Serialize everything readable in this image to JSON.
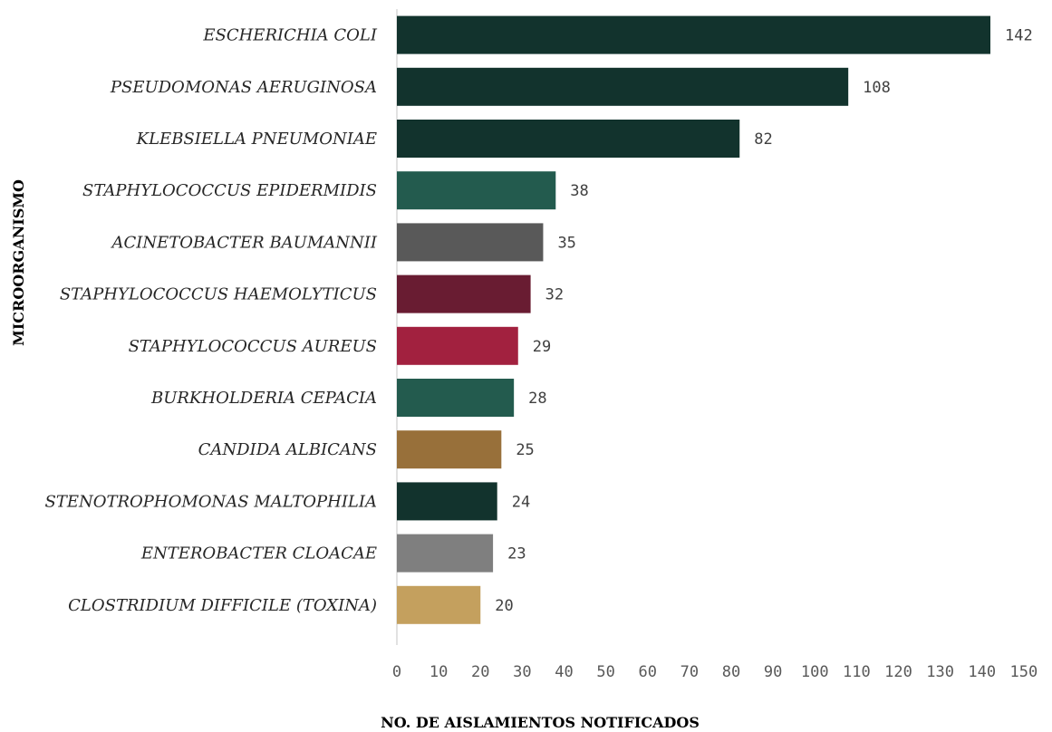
{
  "chart_data": {
    "type": "bar",
    "orientation": "horizontal",
    "categories": [
      "ESCHERICHIA COLI",
      "PSEUDOMONAS AERUGINOSA",
      "KLEBSIELLA PNEUMONIAE",
      "STAPHYLOCOCCUS EPIDERMIDIS",
      "ACINETOBACTER BAUMANNII",
      "STAPHYLOCOCCUS HAEMOLYTICUS",
      "STAPHYLOCOCCUS AUREUS",
      "BURKHOLDERIA CEPACIA",
      "CANDIDA ALBICANS",
      "STENOTROPHOMONAS MALTOPHILIA",
      "ENTEROBACTER CLOACAE",
      "CLOSTRIDIUM DIFFICILE (TOXINA)"
    ],
    "values": [
      142,
      108,
      82,
      38,
      35,
      32,
      29,
      28,
      25,
      24,
      23,
      20
    ],
    "colors": [
      "#12332d",
      "#12332d",
      "#12332d",
      "#235b4e",
      "#595959",
      "#691c32",
      "#a2213f",
      "#235b4e",
      "#98703a",
      "#12332d",
      "#7f7f7f",
      "#c4a05e"
    ],
    "xlim": [
      0,
      150
    ],
    "xticks": [
      0,
      10,
      20,
      30,
      40,
      50,
      60,
      70,
      80,
      90,
      100,
      110,
      120,
      130,
      140,
      150
    ],
    "xlabel": "NO. DE AISLAMIENTOS NOTIFICADOS",
    "ylabel": "MICROORGANISMO",
    "grid": false,
    "data_labels": true
  }
}
